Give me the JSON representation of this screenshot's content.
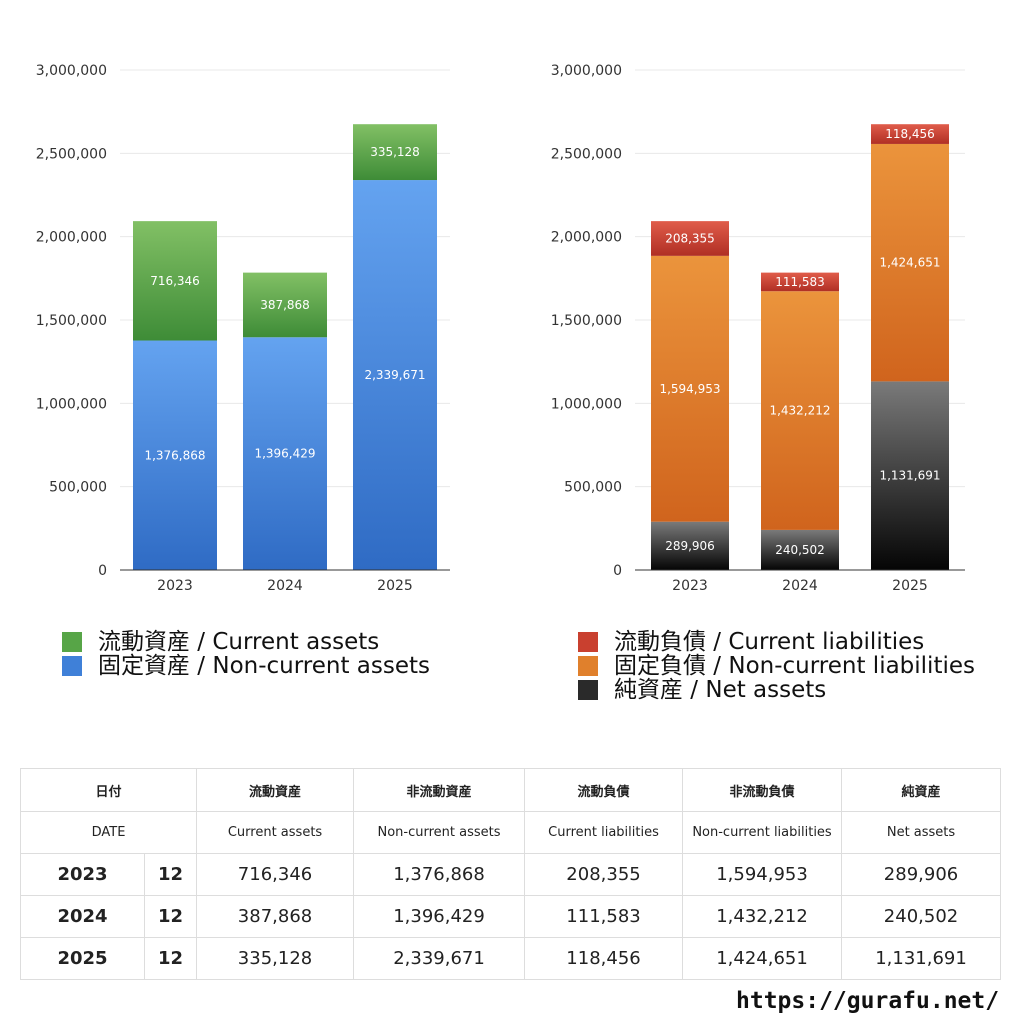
{
  "chart_data": [
    {
      "type": "bar",
      "stacked": true,
      "categories": [
        "2023",
        "2024",
        "2025"
      ],
      "series": [
        {
          "name": "固定資産 / Non-current assets",
          "values": [
            1376868,
            1396429,
            2339671
          ],
          "colors": [
            "#2f6bc4",
            "#64a3f0"
          ]
        },
        {
          "name": "流動資産 / Current assets",
          "values": [
            716346,
            387868,
            335128
          ],
          "colors": [
            "#3e8c37",
            "#82c065"
          ]
        }
      ],
      "value_labels": [
        [
          "1,376,868",
          "1,396,429",
          "2,339,671"
        ],
        [
          "716,346",
          "387,868",
          "335,128"
        ]
      ],
      "yticks": [
        "0",
        "500,000",
        "1,000,000",
        "1,500,000",
        "2,000,000",
        "2,500,000",
        "3,000,000"
      ],
      "ylim": [
        0,
        3000000
      ],
      "grid": true,
      "legend_position": "bottom"
    },
    {
      "type": "bar",
      "stacked": true,
      "categories": [
        "2023",
        "2024",
        "2025"
      ],
      "series": [
        {
          "name": "純資産 / Net assets",
          "values": [
            289906,
            240502,
            1131691
          ],
          "colors": [
            "#050505",
            "#7a7a7a"
          ]
        },
        {
          "name": "固定負債 / Non-current liabilities",
          "values": [
            1594953,
            1432212,
            1424651
          ],
          "colors": [
            "#d0641d",
            "#eb943c"
          ]
        },
        {
          "name": "流動負債 / Current liabilities",
          "values": [
            208355,
            111583,
            118456
          ],
          "colors": [
            "#b02f24",
            "#e05c4a"
          ]
        }
      ],
      "value_labels": [
        [
          "289,906",
          "240,502",
          "1,131,691"
        ],
        [
          "1,594,953",
          "1,432,212",
          "1,424,651"
        ],
        [
          "208,355",
          "111,583",
          "118,456"
        ]
      ],
      "yticks": [
        "0",
        "500,000",
        "1,000,000",
        "1,500,000",
        "2,000,000",
        "2,500,000",
        "3,000,000"
      ],
      "ylim": [
        0,
        3000000
      ],
      "grid": true,
      "legend_position": "bottom"
    }
  ],
  "legend_left": [
    {
      "label": "流動資産 / Current assets",
      "color": "#57a547"
    },
    {
      "label": "固定資産 / Non-current assets",
      "color": "#3f80d8"
    }
  ],
  "legend_right": [
    {
      "label": "流動負債 / Current liabilities",
      "color": "#c9402f"
    },
    {
      "label": "固定負債 / Non-current liabilities",
      "color": "#e0802c"
    },
    {
      "label": "純資産 / Net assets",
      "color": "#2a2a2a"
    }
  ],
  "table": {
    "header_jp": [
      "日付",
      "流動資産",
      "非流動資産",
      "流動負債",
      "非流動負債",
      "純資産"
    ],
    "header_en": [
      "DATE",
      "Current assets",
      "Non-current assets",
      "Current liabilities",
      "Non-current liabilities",
      "Net assets"
    ],
    "rows": [
      {
        "year": "2023",
        "month": "12",
        "values": [
          "716,346",
          "1,376,868",
          "208,355",
          "1,594,953",
          "289,906"
        ]
      },
      {
        "year": "2024",
        "month": "12",
        "values": [
          "387,868",
          "1,396,429",
          "111,583",
          "1,432,212",
          "240,502"
        ]
      },
      {
        "year": "2025",
        "month": "12",
        "values": [
          "335,128",
          "2,339,671",
          "118,456",
          "1,424,651",
          "1,131,691"
        ]
      }
    ]
  },
  "footer": "https://gurafu.net/"
}
